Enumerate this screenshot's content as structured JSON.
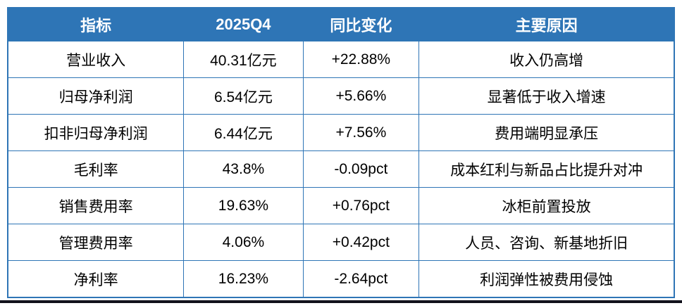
{
  "colors": {
    "header_bg": "#2E75B6",
    "header_text": "#FFFFFF",
    "border": "#2E75B6",
    "body_text": "#000000",
    "bottom_rule": "#12121C"
  },
  "chart_data": {
    "type": "table",
    "columns": [
      "指标",
      "2025Q4",
      "同比变化",
      "主要原因"
    ],
    "rows": [
      [
        "营业收入",
        "40.31亿元",
        "+22.88%",
        "收入仍高增"
      ],
      [
        "归母净利润",
        "6.54亿元",
        "+5.66%",
        "显著低于收入增速"
      ],
      [
        "扣非归母净利润",
        "6.44亿元",
        "+7.56%",
        "费用端明显承压"
      ],
      [
        "毛利率",
        "43.8%",
        "-0.09pct",
        "成本红利与新品占比提升对冲"
      ],
      [
        "销售费用率",
        "19.63%",
        "+0.76pct",
        "冰柜前置投放"
      ],
      [
        "管理费用率",
        "4.06%",
        "+0.42pct",
        "人员、咨询、新基地折旧"
      ],
      [
        "净利率",
        "16.23%",
        "-2.64pct",
        "利润弹性被费用侵蚀"
      ]
    ]
  }
}
